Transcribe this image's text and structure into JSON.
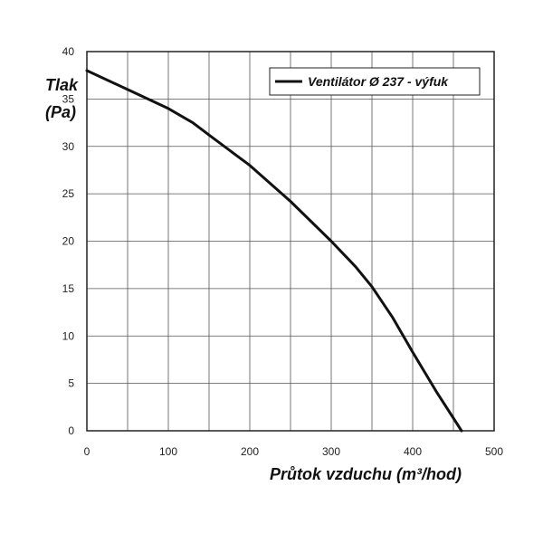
{
  "chart_data": {
    "type": "line",
    "title": "",
    "ylabel_line1": "Tlak",
    "ylabel_line2": "(Pa)",
    "xlabel": "Průtok vzduchu (m³/hod)",
    "xlim": [
      0,
      500
    ],
    "ylim": [
      0,
      40
    ],
    "x_ticks": [
      0,
      100,
      200,
      300,
      400,
      500
    ],
    "y_ticks": [
      0,
      5,
      10,
      15,
      20,
      25,
      30,
      35,
      40
    ],
    "grid": true,
    "legend_position": "top-right",
    "series": [
      {
        "name": "Ventilátor Ø 237 - výfuk",
        "color": "#111111",
        "points": [
          [
            0,
            38
          ],
          [
            50,
            36
          ],
          [
            100,
            34
          ],
          [
            130,
            32.5
          ],
          [
            150,
            31.2
          ],
          [
            200,
            28
          ],
          [
            250,
            24.2
          ],
          [
            300,
            20
          ],
          [
            330,
            17.3
          ],
          [
            350,
            15.2
          ],
          [
            375,
            12
          ],
          [
            400,
            8.3
          ],
          [
            430,
            4
          ],
          [
            460,
            0
          ]
        ]
      }
    ]
  }
}
